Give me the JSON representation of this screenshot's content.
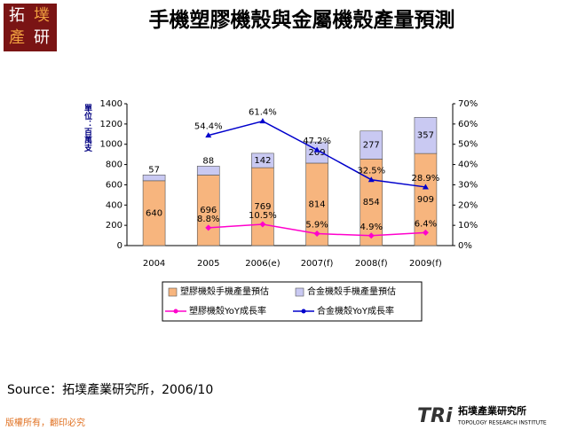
{
  "slide": {
    "logo": [
      "拓",
      "墣",
      "產",
      "研"
    ],
    "title": "手機塑膠機殼與金屬機殼產量預測",
    "source": "Source：拓墣產業研究所，2006/10",
    "copyright": "版權所有，翻印必究",
    "footer_mark": "TRi",
    "footer_name": "拓墣產業研究所",
    "footer_en": "TOPOLOGY RESEARCH INSTITUTE"
  },
  "chart_data": {
    "type": "combo",
    "y_label": "單位：百萬支",
    "categories": [
      "2004",
      "2005",
      "2006(e)",
      "2007(f)",
      "2008(f)",
      "2009(f)"
    ],
    "series": [
      {
        "name": "塑膠機殼手機產量預估",
        "type": "bar",
        "color": "#f7b57e",
        "values": [
          640,
          696,
          769,
          814,
          854,
          909
        ]
      },
      {
        "name": "合金機殼手機產量預估",
        "type": "bar",
        "color": "#c9c9f2",
        "values": [
          57,
          88,
          142,
          209,
          277,
          357
        ]
      },
      {
        "name": "塑膠機殼YoY成長率",
        "type": "line",
        "axis": "y2",
        "color": "#ff00cc",
        "values": [
          null,
          8.8,
          10.5,
          5.9,
          4.9,
          6.4
        ],
        "value_labels": [
          null,
          "8.8%",
          "10.5%",
          "5.9%",
          "4.9%",
          "6.4%"
        ]
      },
      {
        "name": "合金機殼YoY成長率",
        "type": "line",
        "axis": "y2",
        "color": "#0000cc",
        "values": [
          null,
          54.4,
          61.4,
          47.2,
          32.5,
          28.9
        ],
        "value_labels": [
          null,
          "54.4%",
          "61.4%",
          "47.2%",
          "32.5%",
          "28.9%"
        ]
      }
    ],
    "ylim": [
      0,
      1400
    ],
    "yticks": [
      0,
      200,
      400,
      600,
      800,
      1000,
      1200,
      1400
    ],
    "y2lim": [
      0,
      70
    ],
    "y2ticks": [
      {
        "value": 0,
        "label": "0%"
      },
      {
        "value": 10,
        "label": "10%"
      },
      {
        "value": 20,
        "label": "20%"
      },
      {
        "value": 30,
        "label": "30%"
      },
      {
        "value": 40,
        "label": "40%"
      },
      {
        "value": 50,
        "label": "50%"
      },
      {
        "value": 60,
        "label": "60%"
      },
      {
        "value": 70,
        "label": "70%"
      }
    ]
  }
}
